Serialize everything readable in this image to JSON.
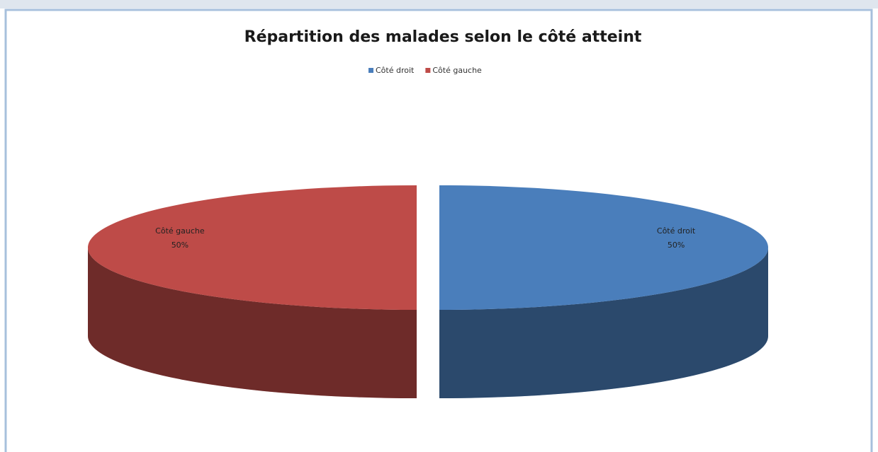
{
  "chart_data": {
    "type": "pie3d",
    "title": "Répartition des malades selon le côté atteint",
    "categories": [
      "Côté droit",
      "Côté gauche"
    ],
    "values": [
      50,
      50
    ],
    "value_labels": [
      "50%",
      "50%"
    ],
    "colors": [
      "#4a7ebb",
      "#be4b48"
    ],
    "legend": "top"
  }
}
